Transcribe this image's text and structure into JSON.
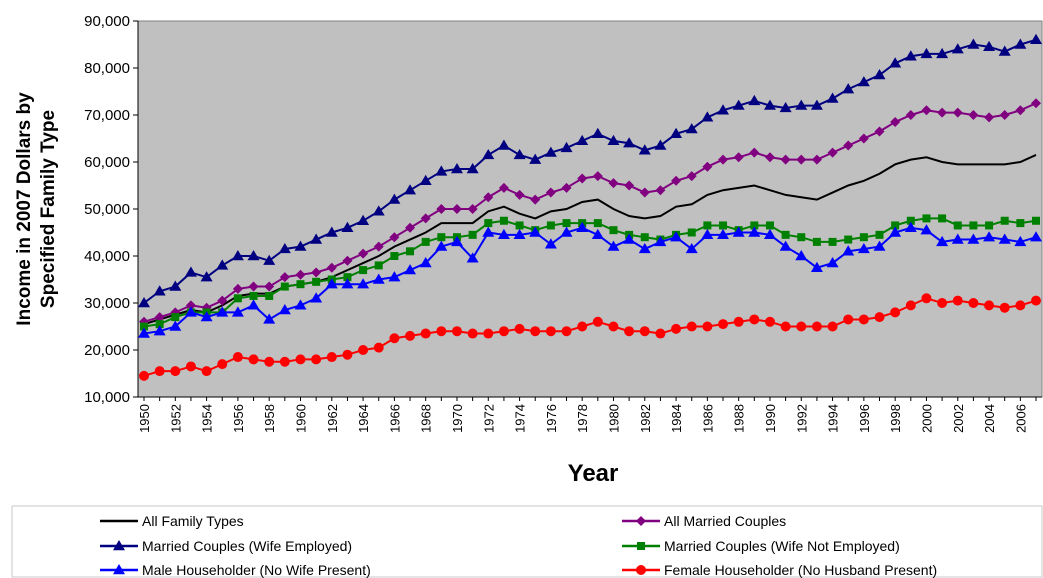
{
  "chart_data": {
    "type": "line",
    "title": "",
    "xlabel": "Year",
    "ylabel_lines": [
      "Income in 2007 Dollars by",
      "Specified Family Type"
    ],
    "ylim": [
      10000,
      90000
    ],
    "y_ticks": [
      "10,000",
      "20,000",
      "30,000",
      "40,000",
      "50,000",
      "60,000",
      "70,000",
      "80,000",
      "90,000"
    ],
    "x_tick_labels": [
      "1950",
      "1952",
      "1954",
      "1956",
      "1958",
      "1960",
      "1962",
      "1964",
      "1966",
      "1968",
      "1970",
      "1972",
      "1974",
      "1976",
      "1978",
      "1980",
      "1982",
      "1984",
      "1986",
      "1988",
      "1990",
      "1992",
      "1994",
      "1996",
      "1998",
      "2000",
      "2002",
      "2004",
      "2006"
    ],
    "grid": false,
    "plot_background": "#c0c0c0",
    "legend_position": "bottom",
    "x": [
      1950,
      1951,
      1952,
      1953,
      1954,
      1955,
      1956,
      1957,
      1958,
      1959,
      1960,
      1961,
      1962,
      1963,
      1964,
      1965,
      1966,
      1967,
      1968,
      1969,
      1970,
      1971,
      1972,
      1973,
      1974,
      1975,
      1976,
      1977,
      1978,
      1979,
      1980,
      1981,
      1982,
      1983,
      1984,
      1985,
      1986,
      1987,
      1988,
      1989,
      1990,
      1991,
      1992,
      1993,
      1994,
      1995,
      1996,
      1997,
      1998,
      1999,
      2000,
      2001,
      2002,
      2003,
      2004,
      2005,
      2006,
      2007
    ],
    "series": [
      {
        "name": "All Family Types",
        "color": "#000000",
        "marker": "none",
        "values": [
          25500,
          26500,
          27500,
          28500,
          28000,
          29500,
          31500,
          32000,
          32000,
          33500,
          34000,
          34500,
          35500,
          37000,
          38500,
          40000,
          42000,
          43500,
          45000,
          47000,
          47000,
          47000,
          49500,
          50500,
          49000,
          48000,
          49500,
          50000,
          51500,
          52000,
          50000,
          48500,
          48000,
          48500,
          50500,
          51000,
          53000,
          54000,
          54500,
          55000,
          54000,
          53000,
          52500,
          52000,
          53500,
          55000,
          56000,
          57500,
          59500,
          60500,
          61000,
          60000,
          59500,
          59500,
          59500,
          59500,
          60000,
          61500
        ]
      },
      {
        "name": "All Married Couples",
        "color": "#800080",
        "marker": "diamond",
        "values": [
          26000,
          27000,
          28000,
          29500,
          29000,
          30500,
          33000,
          33500,
          33500,
          35500,
          36000,
          36500,
          37500,
          39000,
          40500,
          42000,
          44000,
          46000,
          48000,
          50000,
          50000,
          50000,
          52500,
          54500,
          53000,
          52000,
          53500,
          54500,
          56500,
          57000,
          55500,
          55000,
          53500,
          54000,
          56000,
          57000,
          59000,
          60500,
          61000,
          62000,
          61000,
          60500,
          60500,
          60500,
          62000,
          63500,
          65000,
          66500,
          68500,
          70000,
          71000,
          70500,
          70500,
          70000,
          69500,
          70000,
          71000,
          72500
        ]
      },
      {
        "name": "Married Couples (Wife Employed)",
        "color": "#000080",
        "marker": "triangle",
        "values": [
          30000,
          32500,
          33500,
          36500,
          35500,
          38000,
          40000,
          40000,
          39000,
          41500,
          42000,
          43500,
          45000,
          46000,
          47500,
          49500,
          52000,
          54000,
          56000,
          58000,
          58500,
          58500,
          61500,
          63500,
          61500,
          60500,
          62000,
          63000,
          64500,
          66000,
          64500,
          64000,
          62500,
          63500,
          66000,
          67000,
          69500,
          71000,
          72000,
          73000,
          72000,
          71500,
          72000,
          72000,
          73500,
          75500,
          77000,
          78500,
          81000,
          82500,
          83000,
          83000,
          84000,
          85000,
          84500,
          83500,
          85000,
          86000
        ]
      },
      {
        "name": "Married Couples (Wife Not Employed)",
        "color": "#008000",
        "marker": "square",
        "values": [
          25000,
          25500,
          27000,
          28000,
          28000,
          28000,
          31000,
          31500,
          31500,
          33500,
          34000,
          34500,
          35000,
          35500,
          37000,
          38000,
          40000,
          41000,
          43000,
          44000,
          44000,
          44500,
          47000,
          47500,
          46500,
          45500,
          46500,
          47000,
          47000,
          47000,
          45500,
          44500,
          44000,
          43500,
          44500,
          45000,
          46500,
          46500,
          45500,
          46500,
          46500,
          44500,
          44000,
          43000,
          43000,
          43500,
          44000,
          44500,
          46500,
          47500,
          48000,
          48000,
          46500,
          46500,
          46500,
          47500,
          47000,
          47500
        ]
      },
      {
        "name": "Male Householder (No Wife Present)",
        "color": "#0000ff",
        "marker": "triangle",
        "values": [
          23500,
          24000,
          25000,
          28000,
          27000,
          28000,
          28000,
          29500,
          26500,
          28500,
          29500,
          31000,
          34000,
          34000,
          34000,
          35000,
          35500,
          37000,
          38500,
          42000,
          43000,
          39500,
          45000,
          44500,
          44500,
          45000,
          42500,
          45000,
          46000,
          44500,
          42000,
          43500,
          41500,
          43000,
          44000,
          41500,
          44500,
          44500,
          45000,
          45000,
          44500,
          42000,
          40000,
          37500,
          38500,
          41000,
          41500,
          42000,
          45000,
          46000,
          45500,
          43000,
          43500,
          43500,
          44000,
          43500,
          43000,
          44000
        ]
      },
      {
        "name": "Female Householder (No Husband Present)",
        "color": "#ff0000",
        "marker": "circle",
        "values": [
          14500,
          15500,
          15500,
          16500,
          15500,
          17000,
          18500,
          18000,
          17500,
          17500,
          18000,
          18000,
          18500,
          19000,
          20000,
          20500,
          22500,
          23000,
          23500,
          24000,
          24000,
          23500,
          23500,
          24000,
          24500,
          24000,
          24000,
          24000,
          25000,
          26000,
          25000,
          24000,
          24000,
          23500,
          24500,
          25000,
          25000,
          25500,
          26000,
          26500,
          26000,
          25000,
          25000,
          25000,
          25000,
          26500,
          26500,
          27000,
          28000,
          29500,
          31000,
          30000,
          30500,
          30000,
          29500,
          29000,
          29500,
          30500
        ]
      }
    ]
  }
}
